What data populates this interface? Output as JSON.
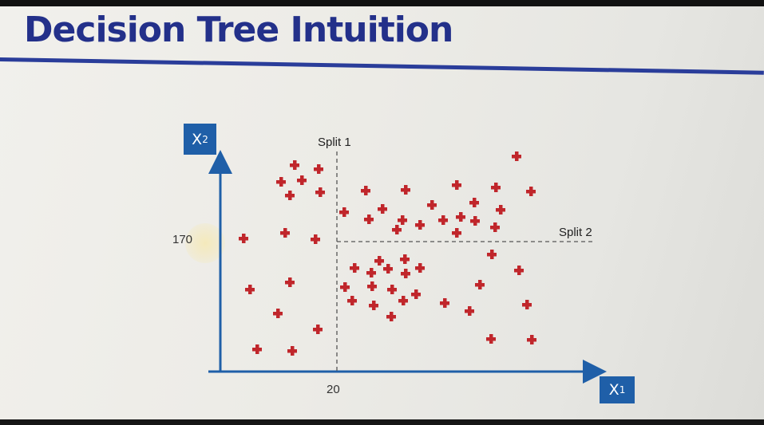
{
  "slide": {
    "title": "Decision Tree Intuition"
  },
  "axes": {
    "x_label": "X",
    "x_subscript": "1",
    "y_label": "X",
    "y_subscript": "2",
    "x_tick": "20",
    "y_tick": "170"
  },
  "splits": {
    "split1_label": "Split 1",
    "split2_label": "Split 2"
  },
  "colors": {
    "title": "#23308a",
    "rule": "#2a3d9a",
    "axis": "#1f5fa8",
    "marker": "#c0262b"
  },
  "points": [
    [
      369,
      207
    ],
    [
      399,
      212
    ],
    [
      378,
      226
    ],
    [
      352,
      228
    ],
    [
      363,
      245
    ],
    [
      401,
      241
    ],
    [
      458,
      239
    ],
    [
      508,
      238
    ],
    [
      572,
      232
    ],
    [
      621,
      235
    ],
    [
      647,
      196
    ],
    [
      665,
      240
    ],
    [
      431,
      266
    ],
    [
      462,
      275
    ],
    [
      479,
      262
    ],
    [
      497,
      288
    ],
    [
      504,
      276
    ],
    [
      526,
      282
    ],
    [
      541,
      257
    ],
    [
      555,
      276
    ],
    [
      577,
      272
    ],
    [
      572,
      292
    ],
    [
      594,
      254
    ],
    [
      595,
      277
    ],
    [
      627,
      263
    ],
    [
      620,
      285
    ],
    [
      305,
      299
    ],
    [
      357,
      292
    ],
    [
      395,
      300
    ],
    [
      616,
      319
    ],
    [
      650,
      339
    ],
    [
      444,
      336
    ],
    [
      475,
      327
    ],
    [
      465,
      342
    ],
    [
      486,
      337
    ],
    [
      507,
      325
    ],
    [
      508,
      343
    ],
    [
      526,
      336
    ],
    [
      466,
      359
    ],
    [
      491,
      363
    ],
    [
      432,
      360
    ],
    [
      441,
      377
    ],
    [
      468,
      383
    ],
    [
      505,
      377
    ],
    [
      521,
      369
    ],
    [
      490,
      397
    ],
    [
      363,
      354
    ],
    [
      557,
      380
    ],
    [
      601,
      357
    ],
    [
      588,
      390
    ],
    [
      660,
      382
    ],
    [
      313,
      363
    ],
    [
      348,
      393
    ],
    [
      398,
      413
    ],
    [
      322,
      438
    ],
    [
      366,
      440
    ],
    [
      615,
      425
    ],
    [
      666,
      426
    ]
  ]
}
